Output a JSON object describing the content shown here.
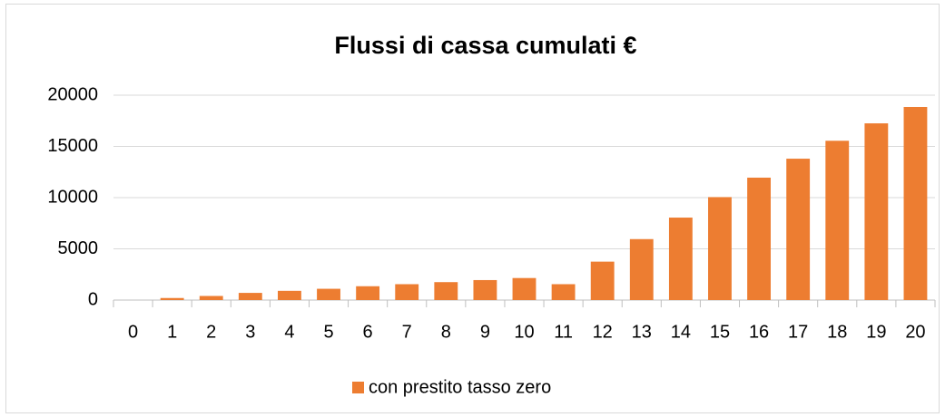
{
  "chart_data": {
    "type": "bar",
    "title": "Flussi di cassa cumulati €",
    "categories": [
      "0",
      "1",
      "2",
      "3",
      "4",
      "5",
      "6",
      "7",
      "8",
      "9",
      "10",
      "11",
      "12",
      "13",
      "14",
      "15",
      "16",
      "17",
      "18",
      "19",
      "20"
    ],
    "series": [
      {
        "name": "con prestito tasso zero",
        "color": "#ed7d31",
        "values": [
          0,
          200,
          400,
          700,
          900,
          1100,
          1350,
          1550,
          1750,
          1950,
          2150,
          1550,
          3750,
          5950,
          8050,
          10050,
          11950,
          13800,
          15550,
          17250,
          18850
        ]
      }
    ],
    "ylim": [
      0,
      20000
    ],
    "yticks": [
      0,
      5000,
      10000,
      15000,
      20000
    ],
    "grid": true,
    "legend": "bottom"
  }
}
